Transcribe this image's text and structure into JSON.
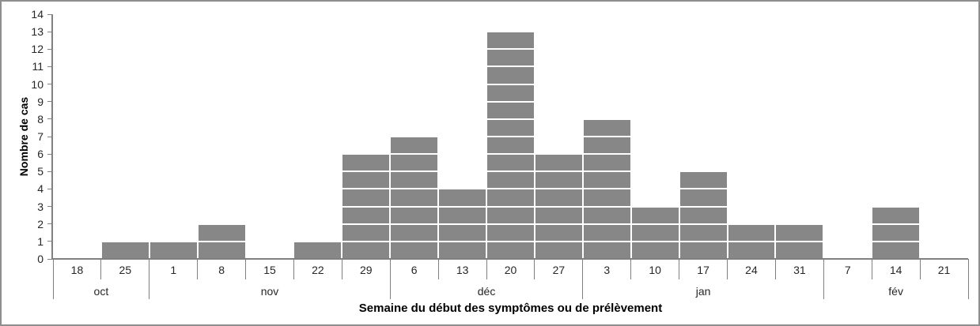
{
  "chart_data": {
    "type": "bar",
    "subtype": "epidemic-curve-unit-cells",
    "title": "",
    "ylabel": "Nombre de cas",
    "xlabel": "Semaine du début des symptômes ou de prélèvement",
    "ylim": [
      0,
      14
    ],
    "yticks": [
      0,
      1,
      2,
      3,
      4,
      5,
      6,
      7,
      8,
      9,
      10,
      11,
      12,
      13,
      14
    ],
    "categories": [
      "18",
      "25",
      "1",
      "8",
      "15",
      "22",
      "29",
      "6",
      "13",
      "20",
      "27",
      "3",
      "10",
      "17",
      "24",
      "31",
      "7",
      "14",
      "21"
    ],
    "values": [
      0,
      1,
      1,
      2,
      0,
      1,
      6,
      7,
      4,
      13,
      6,
      8,
      3,
      5,
      2,
      2,
      0,
      3,
      0
    ],
    "month_groups": [
      {
        "label": "oct",
        "span": 2
      },
      {
        "label": "nov",
        "span": 5
      },
      {
        "label": "déc",
        "span": 4
      },
      {
        "label": "jan",
        "span": 5
      },
      {
        "label": "fév",
        "span": 3
      }
    ],
    "legend": null,
    "grid": "white-lines-inside-bars-only",
    "colors": {
      "bar_fill": "#878787",
      "cell_border": "#ffffff",
      "axis": "#808080",
      "tick_text": "#262626",
      "title_text": "#000000",
      "background": "#ffffff",
      "frame_border": "#8e8e8e"
    }
  }
}
